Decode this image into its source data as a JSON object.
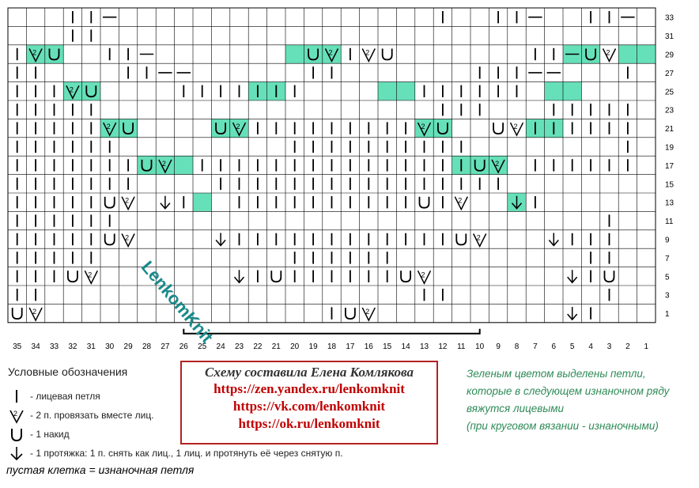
{
  "grid": {
    "cols": 35,
    "rows": 17,
    "column_numbers_left_to_right": [
      "35",
      "34",
      "33",
      "32",
      "31",
      "30",
      "29",
      "28",
      "27",
      "26",
      "25",
      "24",
      "23",
      "22",
      "21",
      "20",
      "19",
      "18",
      "17",
      "16",
      "15",
      "14",
      "13",
      "12",
      "11",
      "10",
      "9",
      "8",
      "7",
      "6",
      "5",
      "4",
      "3",
      "2",
      "1"
    ],
    "row_numbers_top_to_bottom": [
      "33",
      "31",
      "29",
      "27",
      "25",
      "23",
      "21",
      "19",
      "17",
      "15",
      "13",
      "11",
      "9",
      "7",
      "5",
      "3",
      "1"
    ],
    "highlight_color": "#66e0b8",
    "row_strings": [
      "...||-.................|..||-..||-.",
      "...||.............................",
      "|cu..||-........uc|cu.......||-uc.",
      "||....||--......||.......|||--...|",
      "|||cu....|||||||......||||||......",
      "|||||..................|||...|||||",
      "|||||cu....uc|||||||||cu..uc||||||",
      "||||||.........||||||||||........|",
      "||||||Iuc.|||||||||||||IIuc.||||||",
      "|||||||....||||||||||||||||.......",
      "|||||uc.a|..||||||||||u|c..a|....",
      "||||||..........................|",
      "|||||uc....a||||||||||||uc...a|||",
      "|||||..........||||||..........||",
      "|||uc.......a|u||||||uc.......a|u",
      "||....................||........|",
      "uc...............|uc..........a|"
    ],
    "bracket": true
  },
  "legend": {
    "title": "Условные обозначения",
    "items": [
      {
        "symbol": "knit",
        "text": "- лицевая петля"
      },
      {
        "symbol": "k2tog",
        "text": "- 2 п. провязать вместе лиц."
      },
      {
        "symbol": "yo",
        "text": "- 1 накид"
      },
      {
        "symbol": "skp",
        "text": "- 1 протяжка: 1 п. снять как лиц., 1 лиц. и протянуть её через снятую п."
      }
    ],
    "empty_note": "пустая клетка = изнаночная петля"
  },
  "author": {
    "title": "Схему составила Елена Комлякова",
    "links": [
      "https://zen.yandex.ru/lenkomknit",
      "https://vk.com/lenkomknit",
      "https://ok.ru/lenkomknit"
    ]
  },
  "green_note": [
    "Зеленым цветом выделены петли,",
    "которые в следующем изнаночном ряду",
    "вяжутся лицевыми",
    "(при круговом вязании - изнаночными)"
  ],
  "watermark": "LenkomKnit"
}
